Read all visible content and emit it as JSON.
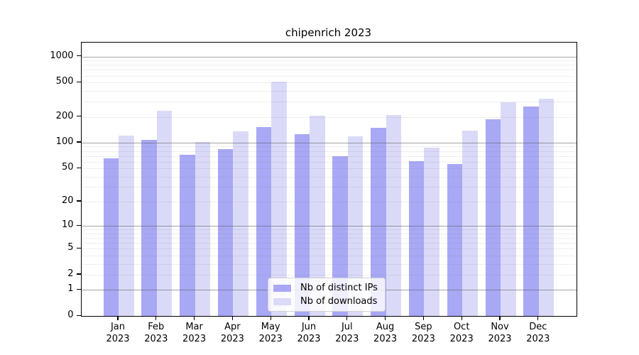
{
  "figure": {
    "title": "chipenrich 2023",
    "background_color": "#ffffff"
  },
  "legend": {
    "items": [
      {
        "label": "Nb of distinct IPs",
        "color": "#a8a8f5"
      },
      {
        "label": "Nb of downloads",
        "color": "#dadaf8"
      }
    ]
  },
  "chart_data": {
    "type": "bar",
    "title": "chipenrich 2023",
    "categories": [
      "Jan 2023",
      "Feb 2023",
      "Mar 2023",
      "Apr 2023",
      "May 2023",
      "Jun 2023",
      "Jul 2023",
      "Aug 2023",
      "Sep 2023",
      "Oct 2023",
      "Nov 2023",
      "Dec 2023"
    ],
    "month_labels": [
      "Jan",
      "Feb",
      "Mar",
      "Apr",
      "May",
      "Jun",
      "Jul",
      "Aug",
      "Sep",
      "Oct",
      "Nov",
      "Dec"
    ],
    "year_label": "2023",
    "series": [
      {
        "name": "Nb of distinct IPs",
        "color": "#a8a8f5",
        "values": [
          65,
          108,
          72,
          84,
          151,
          125,
          70,
          148,
          61,
          56,
          186,
          263
        ]
      },
      {
        "name": "Nb of downloads",
        "color": "#dadaf8",
        "values": [
          121,
          233,
          101,
          135,
          509,
          207,
          119,
          210,
          88,
          137,
          297,
          327
        ]
      }
    ],
    "xlabel": "",
    "ylabel": "",
    "y_axis": {
      "scale": "log1p",
      "ticks": [
        0,
        1,
        2,
        5,
        10,
        20,
        50,
        100,
        200,
        500,
        1000
      ],
      "range": [
        0,
        1440
      ],
      "major_gridlines": [
        1,
        10,
        100,
        1000
      ],
      "minor_gridline_mantissas": [
        2,
        3,
        4,
        5,
        6,
        7,
        8,
        9
      ],
      "grid": "on"
    },
    "legend_position": "inside-bottom-center"
  }
}
